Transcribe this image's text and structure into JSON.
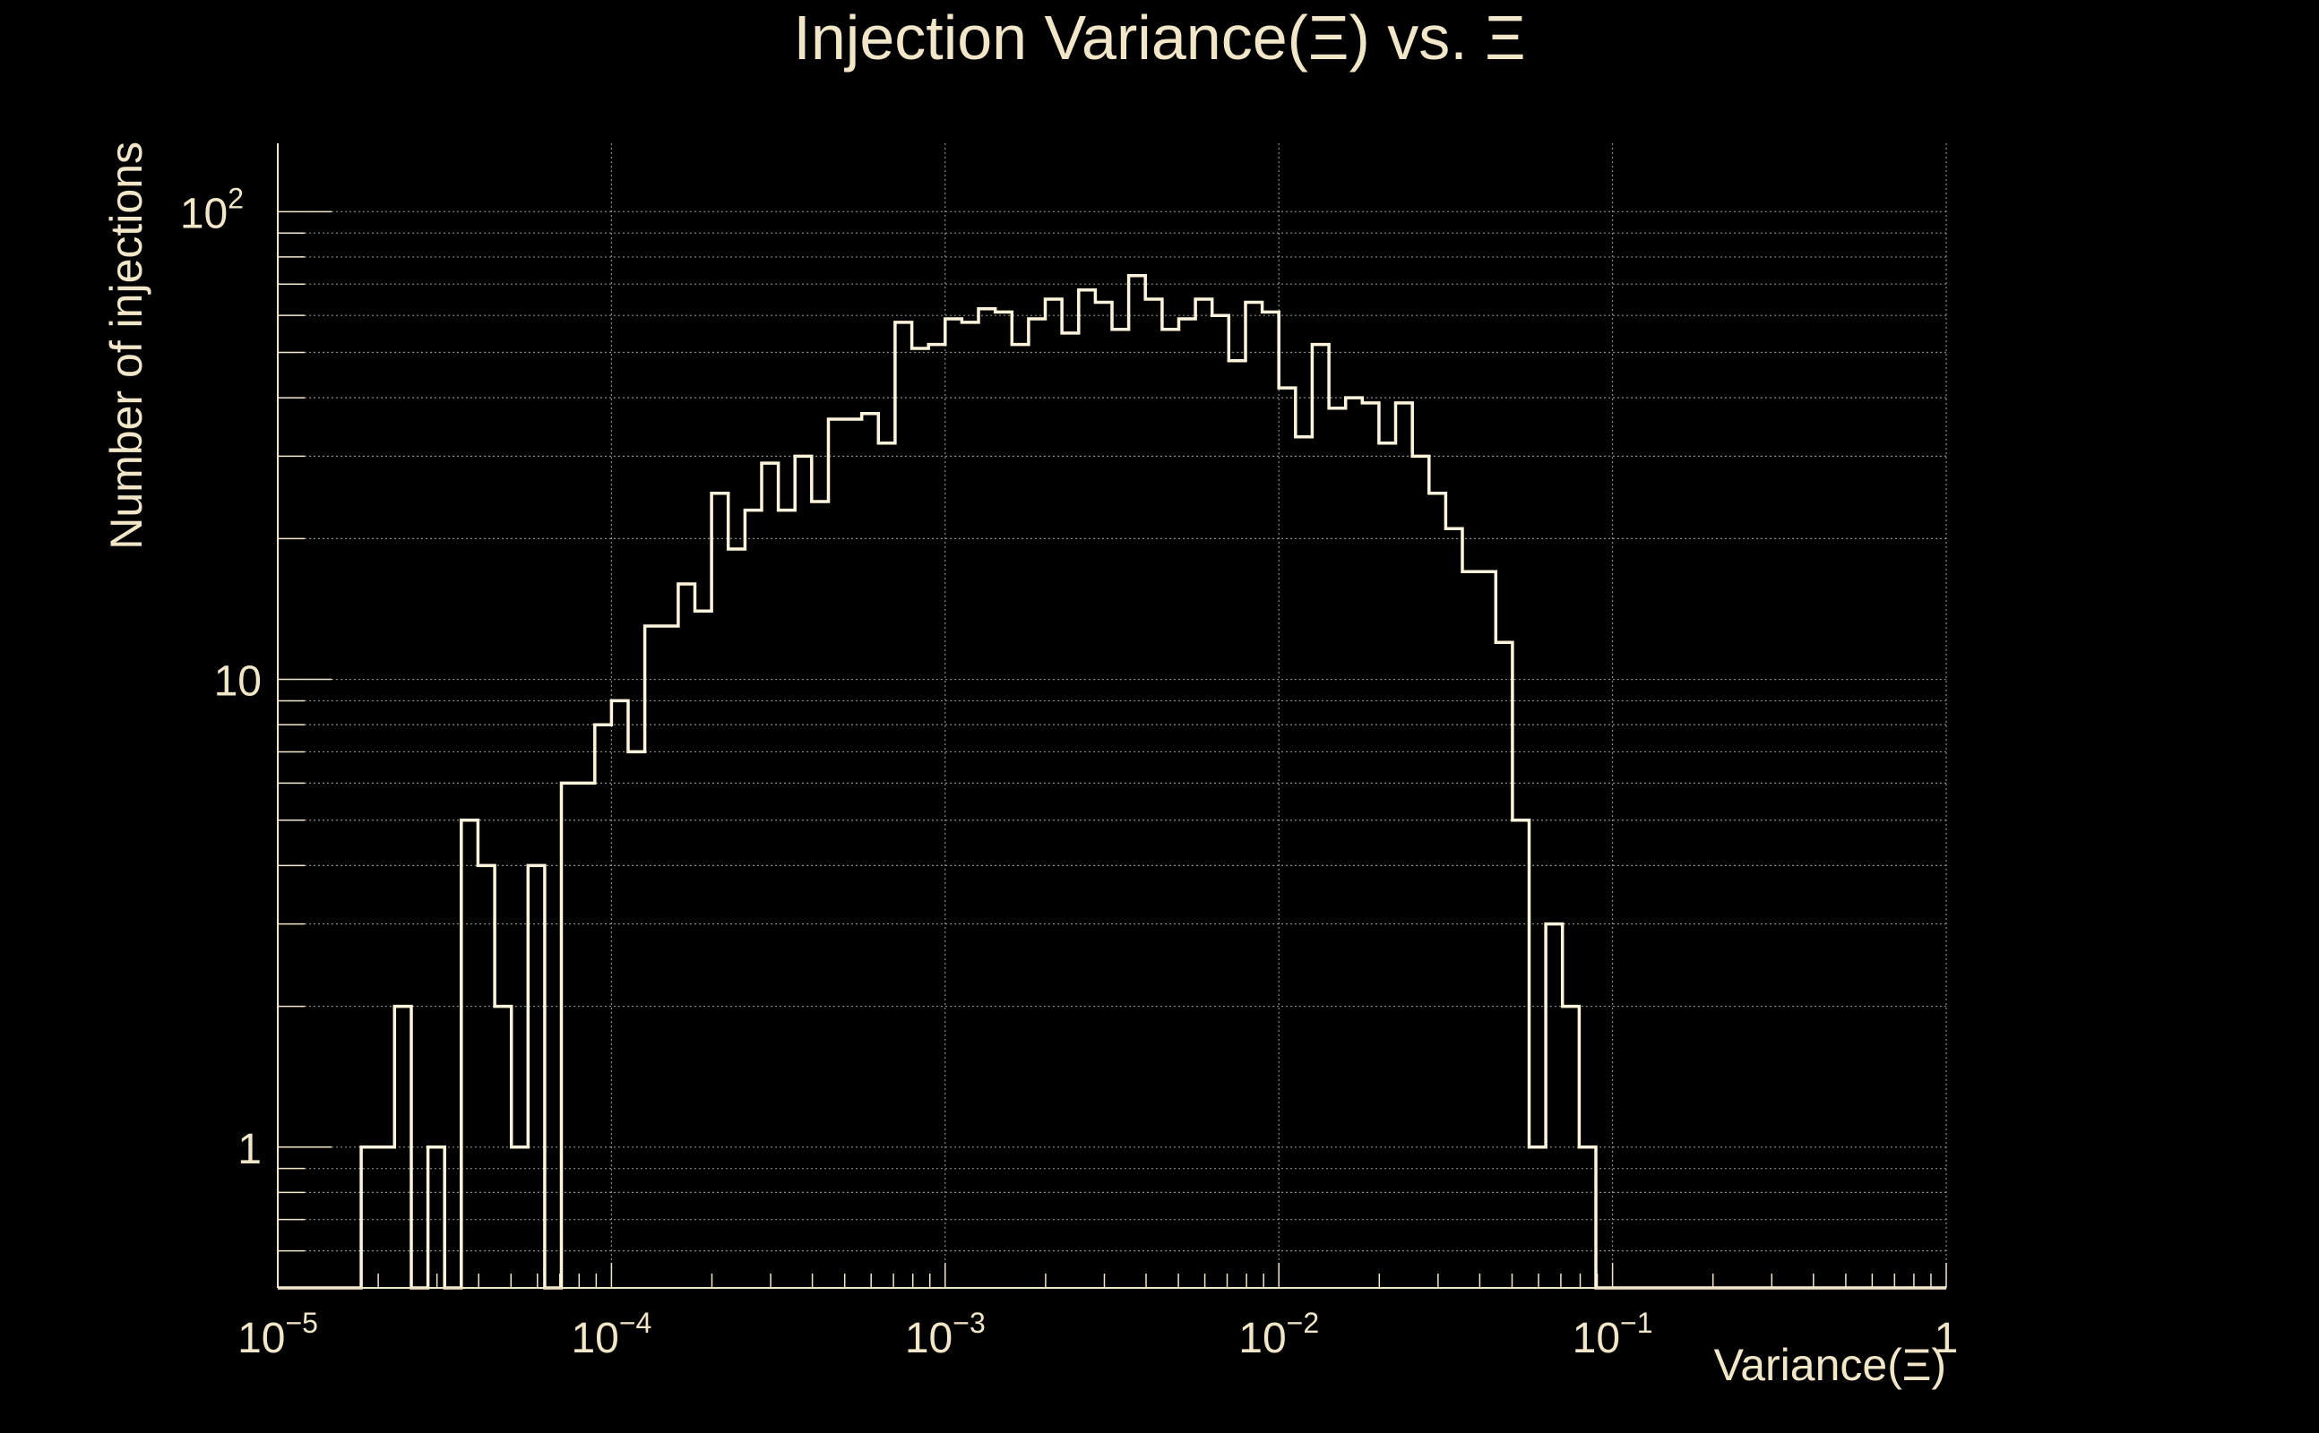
{
  "chart_data": {
    "type": "histogram-step",
    "title": "Injection Variance(Ξ) vs. Ξ",
    "xlabel": "Variance(Ξ)",
    "ylabel": "Number of injections",
    "x_scale": "log",
    "y_scale": "log",
    "xlim": [
      1e-05,
      1
    ],
    "ylim": [
      0.5,
      140
    ],
    "x_ticks": [
      {
        "value": 1e-05,
        "base": "10",
        "exp": "−5"
      },
      {
        "value": 0.0001,
        "base": "10",
        "exp": "−4"
      },
      {
        "value": 0.001,
        "base": "10",
        "exp": "−3"
      },
      {
        "value": 0.01,
        "base": "10",
        "exp": "−2"
      },
      {
        "value": 0.1,
        "base": "10",
        "exp": "−1"
      },
      {
        "value": 1,
        "base": "1",
        "exp": ""
      }
    ],
    "y_ticks": [
      {
        "value": 1,
        "base": "1",
        "exp": ""
      },
      {
        "value": 10,
        "base": "10",
        "exp": ""
      },
      {
        "value": 100,
        "base": "10",
        "exp": "2"
      }
    ],
    "grid": true,
    "line_color": "#fff5dc",
    "text_color": "#f2e6c9",
    "background": "#000000",
    "bins_per_decade": 20,
    "bin_start_exp": -5,
    "counts": [
      0,
      0,
      0,
      0,
      0,
      1,
      1,
      2,
      0,
      1,
      0,
      5,
      4,
      2,
      1,
      4,
      0,
      6,
      6,
      8,
      9,
      7,
      13,
      13,
      16,
      14,
      25,
      19,
      23,
      29,
      23,
      30,
      24,
      36,
      36,
      37,
      32,
      58,
      51,
      52,
      59,
      58,
      62,
      61,
      52,
      59,
      65,
      55,
      68,
      64,
      56,
      73,
      65,
      56,
      59,
      65,
      60,
      48,
      64,
      61,
      42,
      33,
      52,
      38,
      40,
      39,
      32,
      39,
      30,
      25,
      21,
      17,
      17,
      12,
      5,
      1,
      3,
      2,
      1,
      0,
      0,
      0,
      0,
      0,
      0,
      0,
      0,
      0,
      0,
      0,
      0,
      0,
      0,
      0,
      0,
      0,
      0,
      0,
      0,
      0
    ]
  }
}
